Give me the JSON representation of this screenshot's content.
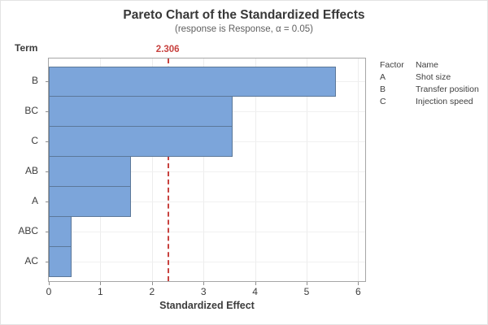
{
  "chart_data": {
    "type": "bar",
    "orientation": "horizontal",
    "title": "Pareto Chart of the Standardized Effects",
    "subtitle": "(response is Response, α = 0.05)",
    "ylabel": "Term",
    "xlabel": "Standardized Effect",
    "categories": [
      "B",
      "BC",
      "C",
      "AB",
      "A",
      "ABC",
      "AC"
    ],
    "values": [
      5.57,
      3.56,
      3.56,
      1.59,
      1.59,
      0.44,
      0.44
    ],
    "xlim": [
      0,
      6
    ],
    "xticks": [
      0,
      1,
      2,
      3,
      4,
      5,
      6
    ],
    "reference_line": {
      "value": 2.306,
      "label": "2.306"
    },
    "grid": true,
    "legend_position": "right",
    "bar_fill": "#7ca5da",
    "bar_edge": "#5c7899",
    "reference_color": "#c8423f",
    "axis_color": "#a6a6a6"
  },
  "legend": {
    "header": {
      "factor": "Factor",
      "name": "Name"
    },
    "rows": [
      {
        "factor": "A",
        "name": "Shot size"
      },
      {
        "factor": "B",
        "name": "Transfer position"
      },
      {
        "factor": "C",
        "name": "Injection speed"
      }
    ]
  }
}
